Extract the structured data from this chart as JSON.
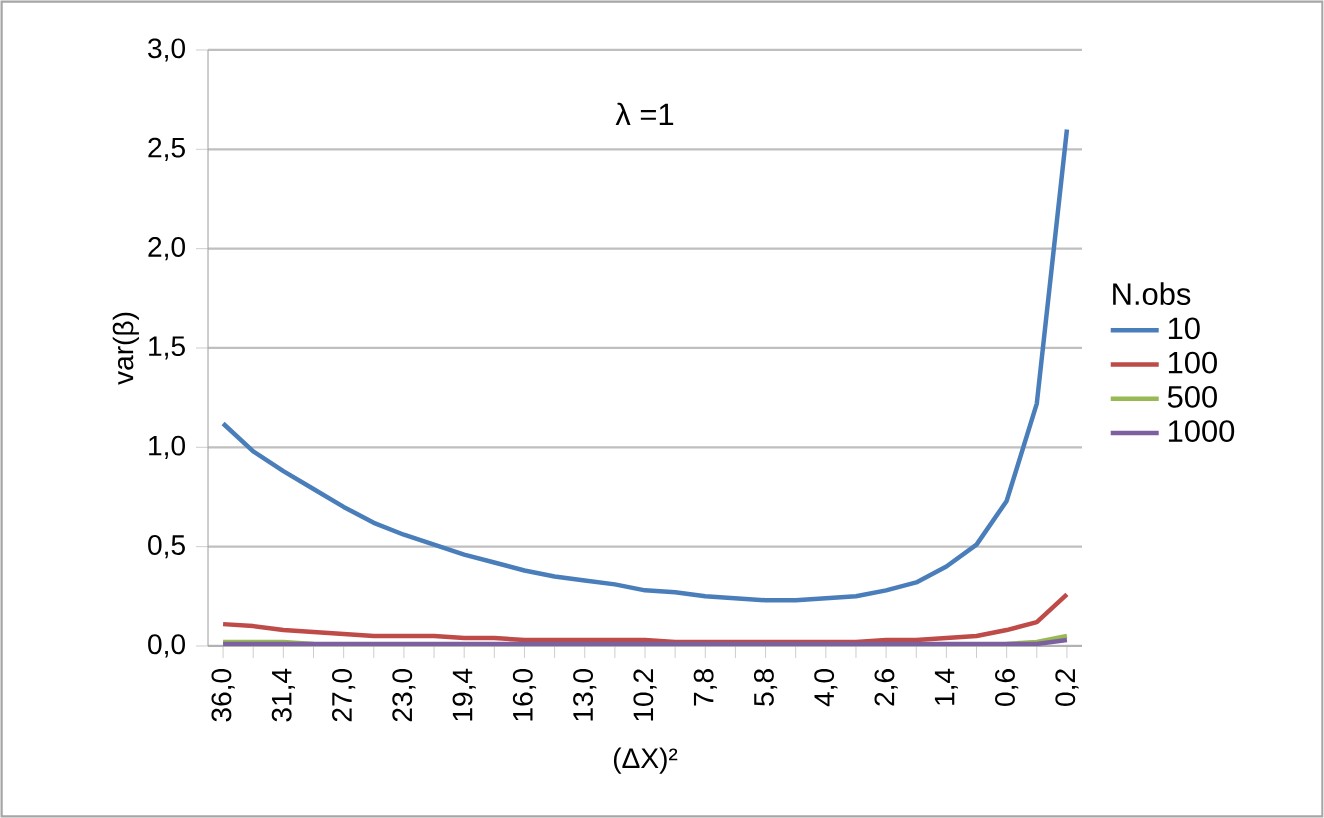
{
  "chart_data": {
    "type": "line",
    "title": "λ =1",
    "xlabel": "(ΔX)²",
    "ylabel": "var(β)",
    "legend_title": "N.obs",
    "categories": [
      "36,0",
      null,
      "31,4",
      null,
      "27,0",
      null,
      "23,0",
      null,
      "19,4",
      null,
      "16,0",
      null,
      "13,0",
      null,
      "10,2",
      null,
      "7,8",
      null,
      "5,8",
      null,
      "4,0",
      null,
      "2,6",
      null,
      "1,4",
      null,
      "0,6",
      null,
      "0,2"
    ],
    "series": [
      {
        "name": "10",
        "color": "#4a7ebb",
        "values": [
          1.12,
          0.98,
          0.88,
          0.79,
          0.7,
          0.62,
          0.56,
          0.51,
          0.46,
          0.42,
          0.38,
          0.35,
          0.33,
          0.31,
          0.28,
          0.27,
          0.25,
          0.24,
          0.23,
          0.23,
          0.24,
          0.25,
          0.28,
          0.32,
          0.4,
          0.51,
          0.73,
          1.22,
          2.6
        ]
      },
      {
        "name": "100",
        "color": "#be4b48",
        "values": [
          0.11,
          0.1,
          0.08,
          0.07,
          0.06,
          0.05,
          0.05,
          0.05,
          0.04,
          0.04,
          0.03,
          0.03,
          0.03,
          0.03,
          0.03,
          0.02,
          0.02,
          0.02,
          0.02,
          0.02,
          0.02,
          0.02,
          0.03,
          0.03,
          0.04,
          0.05,
          0.08,
          0.12,
          0.26
        ]
      },
      {
        "name": "500",
        "color": "#98b954",
        "values": [
          0.02,
          0.02,
          0.02,
          0.01,
          null,
          null,
          null,
          null,
          null,
          null,
          null,
          null,
          null,
          null,
          null,
          null,
          null,
          null,
          null,
          null,
          null,
          null,
          null,
          null,
          null,
          null,
          0.01,
          0.02,
          0.05
        ]
      },
      {
        "name": "1000",
        "color": "#7d60a0",
        "values": [
          0.01,
          0.01,
          0.01,
          0.01,
          0.01,
          0.01,
          0.01,
          0.01,
          0.01,
          0.01,
          0.01,
          0.01,
          0.01,
          0.01,
          0.01,
          0.01,
          0.01,
          0.01,
          0.01,
          0.01,
          0.01,
          0.01,
          0.01,
          0.01,
          0.01,
          0.01,
          0.01,
          0.01,
          0.03
        ]
      }
    ],
    "ylim": [
      0,
      3
    ],
    "yticks": [
      {
        "value": 0,
        "label": "0,0"
      },
      {
        "value": 0.5,
        "label": "0,5"
      },
      {
        "value": 1,
        "label": "1,0"
      },
      {
        "value": 1.5,
        "label": "1,5"
      },
      {
        "value": 2,
        "label": "2,0"
      },
      {
        "value": 2.5,
        "label": "2,5"
      },
      {
        "value": 3,
        "label": "3,0"
      }
    ],
    "grid": "y",
    "legend": "right",
    "marker": "none",
    "line_style": "solid"
  }
}
